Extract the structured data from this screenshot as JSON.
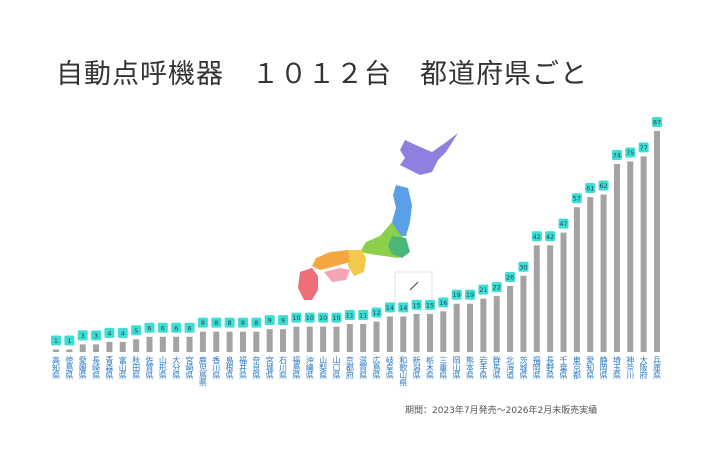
{
  "chart_data": {
    "type": "bar",
    "title": "自動点呼機器　１０１２台　都道府県ごと",
    "note": "期間：2023年7月発売〜2026年2月末販売実績",
    "categories": [
      "高知県",
      "徳島県",
      "愛媛県",
      "長崎県",
      "青森県",
      "富山県",
      "秋田県",
      "佐賀県",
      "山形県",
      "大分県",
      "宮崎県",
      "鹿児島県",
      "香川県",
      "島根県",
      "福井県",
      "奈良県",
      "宮城県",
      "石川県",
      "福島県",
      "沖縄県",
      "山梨県",
      "山口県",
      "京都府",
      "滋賀県",
      "広島県",
      "岐阜県",
      "和歌山県",
      "新潟県",
      "栃木県",
      "三重県",
      "岡山県",
      "熊本県",
      "岩手県",
      "群馬県",
      "北海道",
      "茨城県",
      "福岡県",
      "長野県",
      "千葉県",
      "東京都",
      "愛知県",
      "静岡県",
      "埼玉県",
      "神奈川",
      "大阪府",
      "兵庫県"
    ],
    "values": [
      1,
      1,
      3,
      3,
      4,
      4,
      5,
      6,
      6,
      6,
      6,
      8,
      8,
      8,
      8,
      8,
      9,
      9,
      10,
      10,
      10,
      10,
      11,
      11,
      12,
      14,
      14,
      15,
      15,
      16,
      19,
      19,
      21,
      22,
      26,
      30,
      42,
      42,
      47,
      57,
      61,
      62,
      74,
      75,
      77,
      87
    ],
    "ylim": [
      0,
      87
    ],
    "grid": false,
    "colors": {
      "bar": "#a3a3a3",
      "label_badge": "#40ddd4",
      "category_text": "#2a78c4"
    }
  }
}
